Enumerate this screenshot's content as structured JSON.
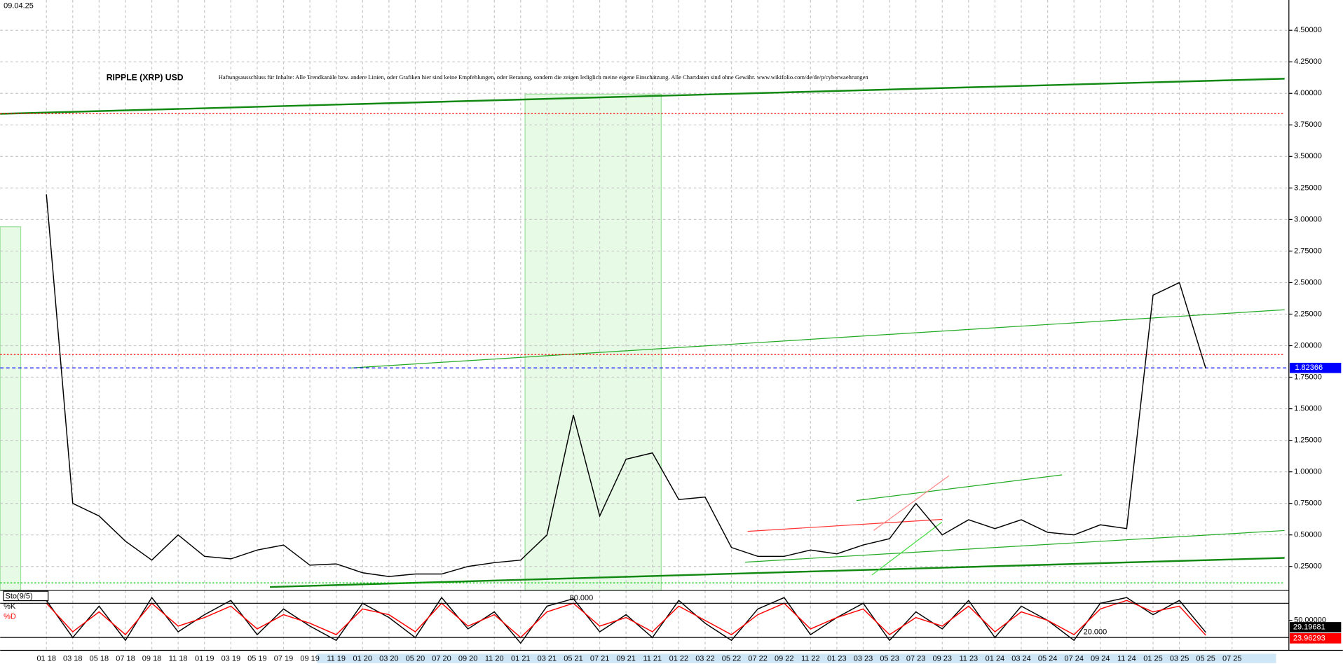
{
  "date": "09.04.25",
  "chart_data": [
    {
      "type": "line",
      "title": "RIPPLE (XRP) USD",
      "subtitle": "Haftungsausschluss für Inhalte: Alle Trendkanäle bzw. andere Linien, oder Grafiken hier sind keine Empfehlungen, oder Beratung, sondern die zeigen lediglich meine eigene Einschätzung. Alle Chartdaten sind ohne Gewähr. www.wikifolio.com/de/de/p/cyberwaehrungen",
      "categories": [
        "01 18",
        "03 18",
        "05 18",
        "07 18",
        "09 18",
        "11 18",
        "01 19",
        "03 19",
        "05 19",
        "07 19",
        "09 19",
        "11 19",
        "01 20",
        "03 20",
        "05 20",
        "07 20",
        "09 20",
        "11 20",
        "01 21",
        "03 21",
        "05 21",
        "07 21",
        "09 21",
        "11 21",
        "01 22",
        "03 22",
        "05 22",
        "07 22",
        "09 22",
        "11 22",
        "01 23",
        "03 23",
        "05 23",
        "07 23",
        "09 23",
        "11 23",
        "01 24",
        "03 24",
        "05 24",
        "07 24",
        "09 24",
        "11 24",
        "01 25",
        "03 25",
        "05 25",
        "07 25"
      ],
      "series": [
        {
          "name": "XRP",
          "color": "#000000",
          "values": [
            3.2,
            0.75,
            0.65,
            0.45,
            0.3,
            0.5,
            0.33,
            0.31,
            0.38,
            0.42,
            0.26,
            0.27,
            0.2,
            0.17,
            0.19,
            0.19,
            0.25,
            0.28,
            0.3,
            0.5,
            1.45,
            0.65,
            1.1,
            1.15,
            0.78,
            0.8,
            0.4,
            0.33,
            0.33,
            0.38,
            0.35,
            0.42,
            0.47,
            0.75,
            0.5,
            0.62,
            0.55,
            0.62,
            0.52,
            0.5,
            0.58,
            0.55,
            2.4,
            2.5,
            1.82,
            null
          ]
        }
      ],
      "ylim": [
        0.06,
        4.74
      ],
      "yticks": [
        {
          "value": 0.25,
          "label": "0.25000"
        },
        {
          "value": 0.5,
          "label": "0.50000"
        },
        {
          "value": 0.75,
          "label": "0.75000"
        },
        {
          "value": 1,
          "label": "1.00000"
        },
        {
          "value": 1.25,
          "label": "1.25000"
        },
        {
          "value": 1.5,
          "label": "1.50000"
        },
        {
          "value": 1.75,
          "label": "1.75000"
        },
        {
          "value": 2,
          "label": "2.00000"
        },
        {
          "value": 2.25,
          "label": "2.25000"
        },
        {
          "value": 2.5,
          "label": "2.50000"
        },
        {
          "value": 2.75,
          "label": "2.75000"
        },
        {
          "value": 3,
          "label": "3.00000"
        },
        {
          "value": 3.25,
          "label": "3.25000"
        },
        {
          "value": 3.5,
          "label": "3.50000"
        },
        {
          "value": 3.75,
          "label": "3.75000"
        },
        {
          "value": 4,
          "label": "4.00000"
        },
        {
          "value": 4.25,
          "label": "4.25000"
        },
        {
          "value": 4.5,
          "label": "4.50000"
        }
      ],
      "grid": true,
      "last_price": 1.82366,
      "last_price_color": "#0000ff",
      "reference_lines": [
        {
          "value": 3.84,
          "color": "#ff0000"
        },
        {
          "value": 1.93,
          "color": "#ff0000"
        },
        {
          "value": 0.12,
          "color": "#00cc00"
        }
      ]
    },
    {
      "type": "line",
      "title": "Sto(9/5)",
      "series": [
        {
          "name": "%K",
          "color": "#000000",
          "values": [
            85,
            20,
            75,
            15,
            90,
            30,
            60,
            85,
            25,
            70,
            40,
            15,
            80,
            55,
            20,
            90,
            35,
            65,
            10,
            75,
            88,
            30,
            60,
            20,
            85,
            45,
            15,
            70,
            90,
            25,
            55,
            80,
            15,
            65,
            35,
            85,
            20,
            75,
            50,
            15,
            80,
            90,
            60,
            85,
            29.19681,
            null
          ]
        },
        {
          "name": "%D",
          "color": "#ff0000",
          "values": [
            80,
            30,
            65,
            25,
            80,
            40,
            55,
            75,
            35,
            60,
            45,
            25,
            70,
            60,
            30,
            80,
            40,
            60,
            20,
            65,
            80,
            40,
            55,
            30,
            75,
            50,
            25,
            60,
            80,
            35,
            55,
            70,
            25,
            55,
            40,
            75,
            30,
            65,
            50,
            25,
            70,
            85,
            65,
            75,
            23.96293,
            null
          ]
        }
      ],
      "ylim": [
        10,
        100
      ],
      "yticks": [
        {
          "value": 50,
          "label": "50.00000"
        }
      ],
      "levels": [
        {
          "value": 80,
          "label": "80.000"
        },
        {
          "value": 20,
          "label": "20.000"
        }
      ]
    }
  ]
}
